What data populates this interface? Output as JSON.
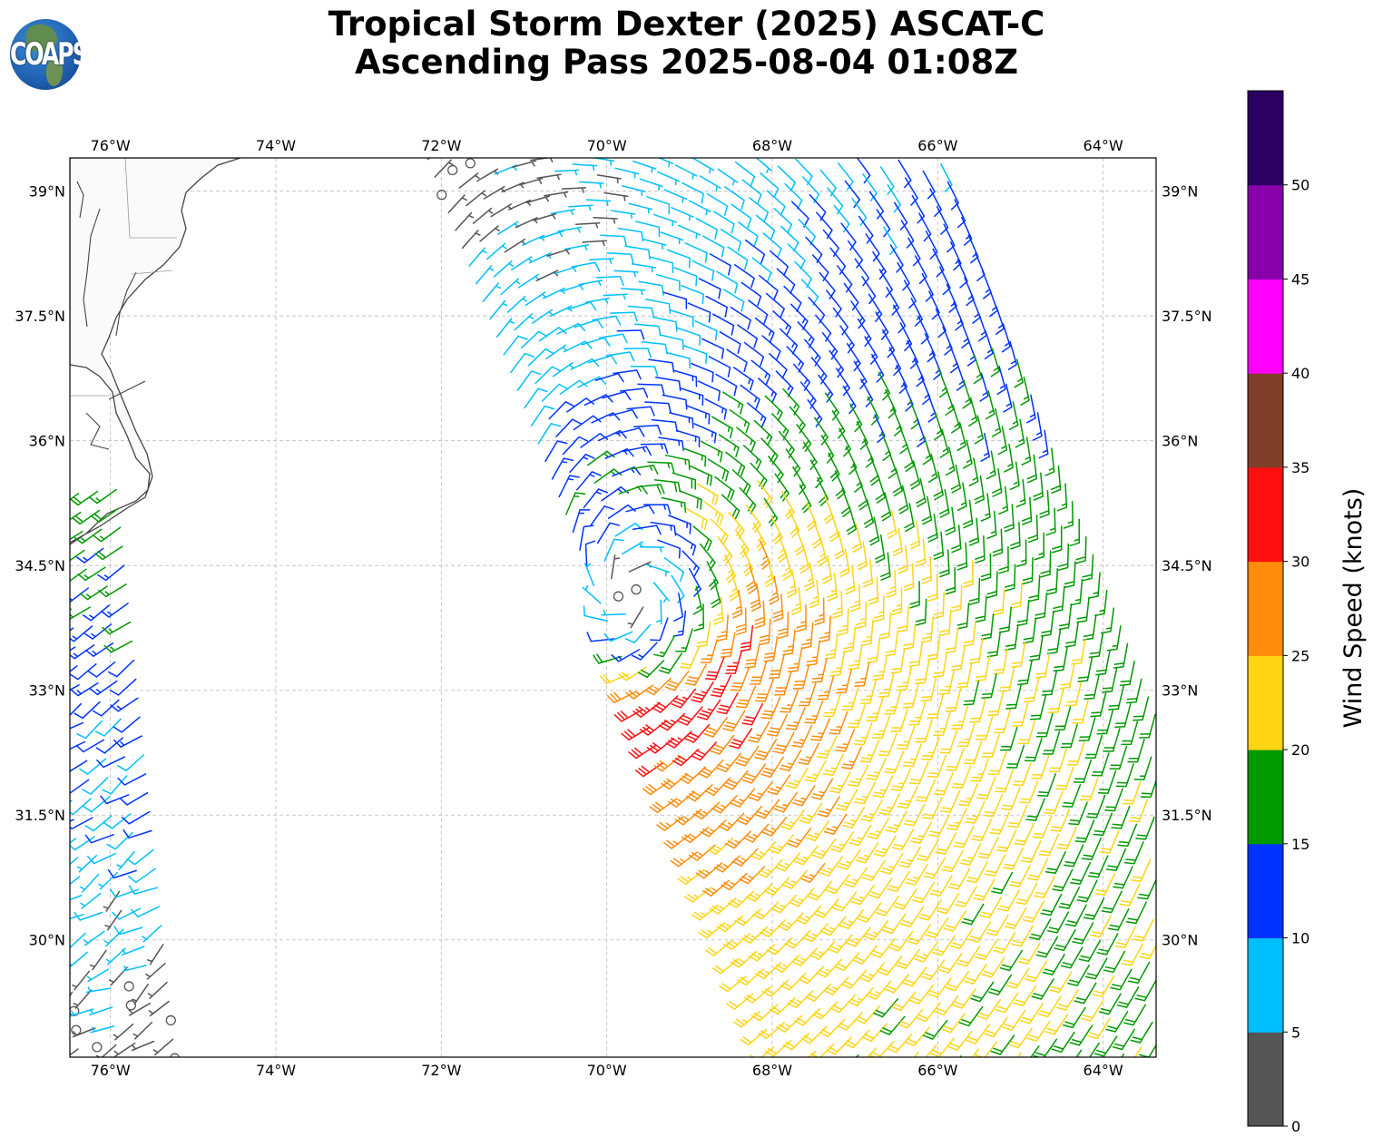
{
  "title": {
    "line1": "Tropical Storm Dexter (2025) ASCAT-C",
    "line2": "Ascending Pass 2025-08-04 01:08Z"
  },
  "logo": {
    "text": "COAPS"
  },
  "chart_data": {
    "type": "map-wind-barbs",
    "extent": {
      "lon": [
        -76.49,
        -63.36
      ],
      "lat": [
        28.59,
        39.4
      ]
    },
    "lon_ticks": [
      {
        "value": -76,
        "label": "76°W"
      },
      {
        "value": -74,
        "label": "74°W"
      },
      {
        "value": -72,
        "label": "72°W"
      },
      {
        "value": -70,
        "label": "70°W"
      },
      {
        "value": -68,
        "label": "68°W"
      },
      {
        "value": -66,
        "label": "66°W"
      },
      {
        "value": -64,
        "label": "64°W"
      }
    ],
    "lat_ticks": [
      {
        "value": 39,
        "label": "39°N"
      },
      {
        "value": 37.5,
        "label": "37.5°N"
      },
      {
        "value": 36,
        "label": "36°N"
      },
      {
        "value": 34.5,
        "label": "34.5°N"
      },
      {
        "value": 33,
        "label": "33°N"
      },
      {
        "value": 31.5,
        "label": "31.5°N"
      },
      {
        "value": 30,
        "label": "30°N"
      }
    ],
    "grid": true,
    "colorbar": {
      "label": "Wind Speed (knots)",
      "range": [
        0,
        55
      ],
      "ticks": [
        "0",
        "5",
        "10",
        "15",
        "20",
        "25",
        "30",
        "35",
        "40",
        "45",
        "50"
      ],
      "bins": [
        {
          "min": 0,
          "max": 5,
          "color": "#555555"
        },
        {
          "min": 5,
          "max": 10,
          "color": "#00bfff"
        },
        {
          "min": 10,
          "max": 15,
          "color": "#0033ff"
        },
        {
          "min": 15,
          "max": 20,
          "color": "#009900"
        },
        {
          "min": 20,
          "max": 25,
          "color": "#ffd414"
        },
        {
          "min": 25,
          "max": 30,
          "color": "#ff8c0a"
        },
        {
          "min": 30,
          "max": 35,
          "color": "#ff1010"
        },
        {
          "min": 35,
          "max": 40,
          "color": "#7f3f2a"
        },
        {
          "min": 40,
          "max": 45,
          "color": "#ff00ff"
        },
        {
          "min": 45,
          "max": 50,
          "color": "#8800aa"
        },
        {
          "min": 50,
          "max": 55,
          "color": "#2a0060"
        }
      ]
    },
    "storm": {
      "center_lon": -69.66,
      "center_lat": 34.1,
      "vmax_kt": 25,
      "rmax_deg": 1.4,
      "inflow_deg": 20,
      "background_kt": 9,
      "background_from_deg": 225
    },
    "swaths": [
      {
        "name": "east",
        "edge_top_lon": -72.24,
        "edge_bottom_lon": -68.01,
        "width_deg": 6.4,
        "side": "right",
        "model": "storm"
      },
      {
        "name": "west",
        "edge_top_lon": -75.8,
        "edge_top_lat": 35.47,
        "edge_bottom_lon": -75.09,
        "width_deg": 1.7,
        "side": "left",
        "model": "uniform",
        "from_deg": 235,
        "speed_north_kt": 18,
        "speed_south_kt": 3
      }
    ]
  }
}
